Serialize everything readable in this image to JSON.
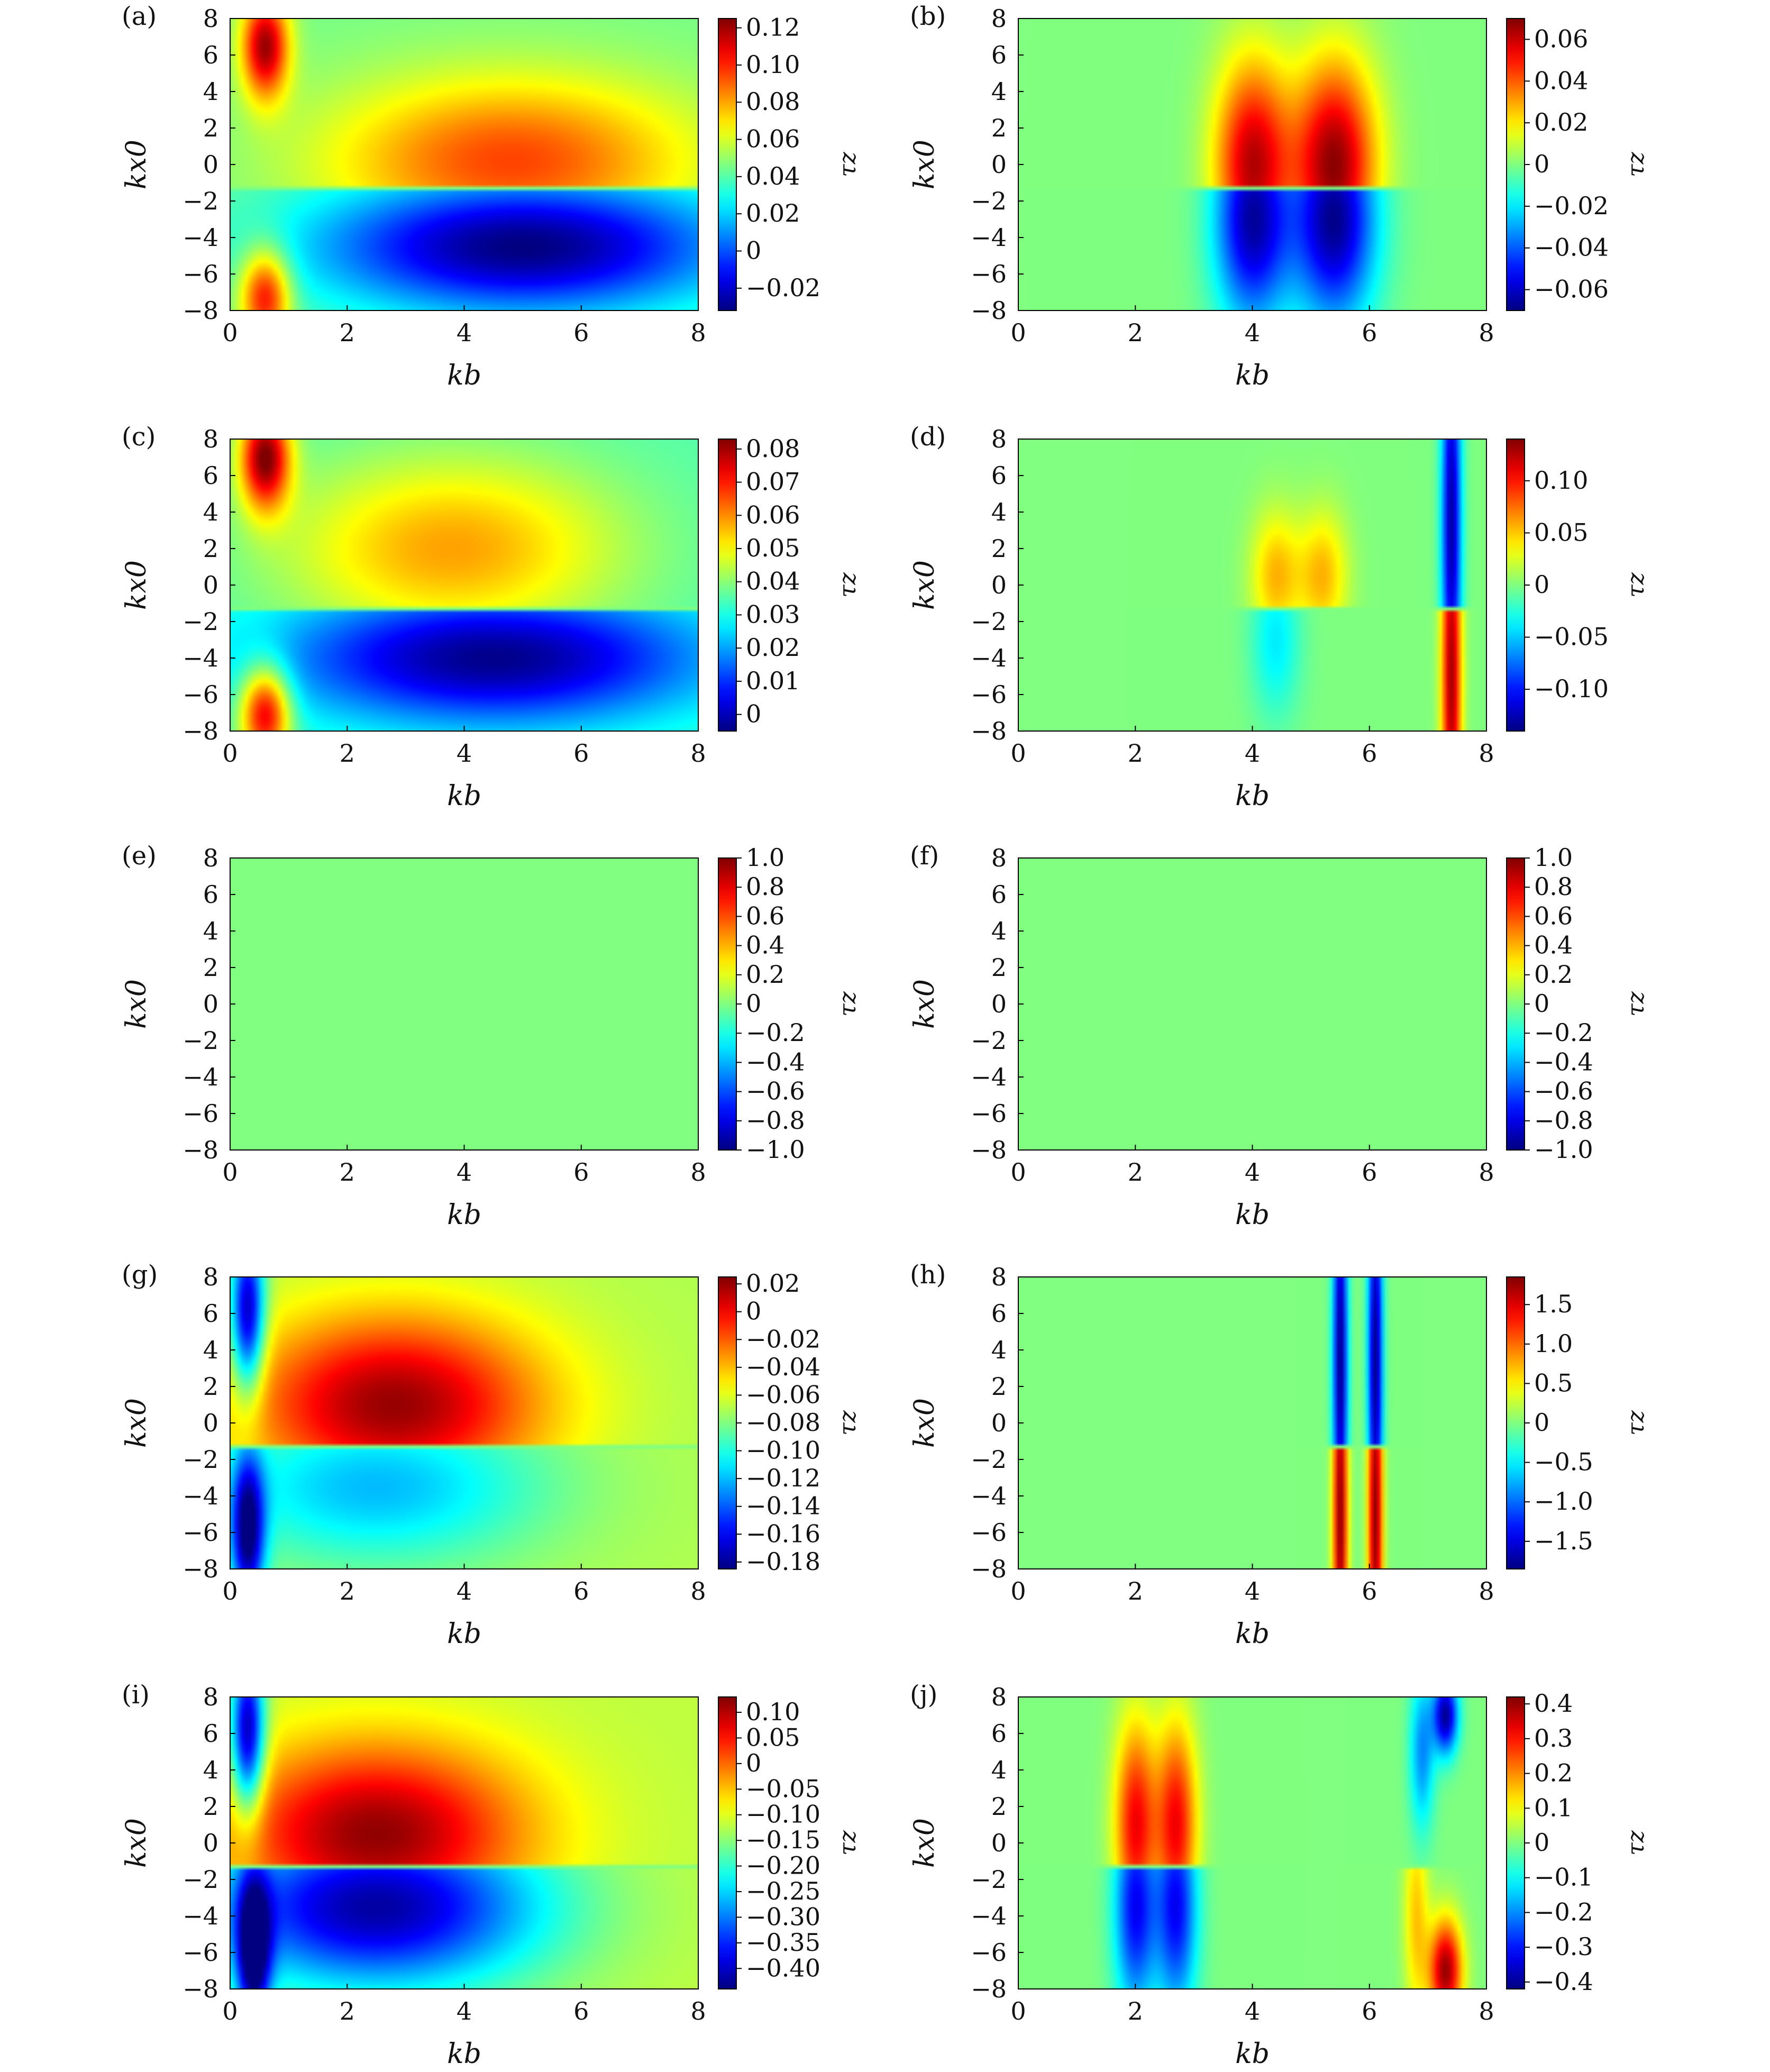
{
  "figure": {
    "panels": [
      "(a)",
      "(b)",
      "(c)",
      "(d)",
      "(e)",
      "(f)",
      "(g)",
      "(h)",
      "(i)",
      "(j)"
    ]
  },
  "chart_data": [
    {
      "type": "heatmap",
      "panel": "(a)",
      "xlabel": "kb",
      "ylabel": "kx0",
      "xlim": [
        0,
        8
      ],
      "ylim": [
        -8,
        8
      ],
      "xticks": [
        "0",
        "2",
        "4",
        "6",
        "8"
      ],
      "yticks": [
        "−8",
        "−6",
        "−4",
        "−2",
        "0",
        "2",
        "4",
        "6",
        "8"
      ],
      "colorbar": {
        "label": "τz",
        "range": [
          -0.032,
          0.125
        ],
        "ticks": [
          -0.02,
          0,
          0.02,
          0.04,
          0.06,
          0.08,
          0.1,
          0.12
        ],
        "tick_labels": [
          "−0.02",
          "0",
          "0.02",
          "0.04",
          "0.06",
          "0.08",
          "0.10",
          "0.12"
        ]
      },
      "sharp_interface_kx0": -1.3,
      "features": [
        {
          "kb": 0.6,
          "kx0": 6.5,
          "value": 0.12,
          "sx": 0.28,
          "sy": 2.0
        },
        {
          "kb": 0.6,
          "kx0": -7.2,
          "value": 0.11,
          "sx": 0.3,
          "sy": 1.8
        },
        {
          "kb": 4.8,
          "kx0": 0.2,
          "value": 0.095,
          "sx": 2.2,
          "sy": 3.2
        },
        {
          "kb": 5.0,
          "kx0": -4.5,
          "value": -0.032,
          "sx": 2.5,
          "sy": 2.6
        }
      ],
      "base_value": 0.045
    },
    {
      "type": "heatmap",
      "panel": "(b)",
      "xlabel": "kb",
      "ylabel": "kx0",
      "xlim": [
        0,
        8
      ],
      "ylim": [
        -8,
        8
      ],
      "xticks": [
        "0",
        "2",
        "4",
        "6",
        "8"
      ],
      "yticks": [
        "−8",
        "−6",
        "−4",
        "−2",
        "0",
        "2",
        "4",
        "6",
        "8"
      ],
      "colorbar": {
        "label": "τz",
        "range": [
          -0.07,
          0.07
        ],
        "ticks": [
          -0.06,
          -0.04,
          -0.02,
          0,
          0.02,
          0.04,
          0.06
        ],
        "tick_labels": [
          "−0.06",
          "−0.04",
          "−0.02",
          "0",
          "0.02",
          "0.04",
          "0.06"
        ]
      },
      "sharp_interface_kx0": -1.3,
      "features": [
        {
          "kb": 4.0,
          "kx0": 0.0,
          "value": 0.062,
          "sx": 0.45,
          "sy": 4.0
        },
        {
          "kb": 5.4,
          "kx0": 0.0,
          "value": 0.068,
          "sx": 0.5,
          "sy": 4.0
        },
        {
          "kb": 4.0,
          "kx0": -3.0,
          "value": -0.065,
          "sx": 0.45,
          "sy": 4.0
        },
        {
          "kb": 5.4,
          "kx0": -3.0,
          "value": -0.068,
          "sx": 0.5,
          "sy": 4.0
        }
      ],
      "base_value": 0.0
    },
    {
      "type": "heatmap",
      "panel": "(c)",
      "xlabel": "kb",
      "ylabel": "kx0",
      "xlim": [
        0,
        8
      ],
      "ylim": [
        -8,
        8
      ],
      "xticks": [
        "0",
        "2",
        "4",
        "6",
        "8"
      ],
      "yticks": [
        "−8",
        "−6",
        "−4",
        "−2",
        "0",
        "2",
        "4",
        "6",
        "8"
      ],
      "colorbar": {
        "label": "τz",
        "range": [
          -0.005,
          0.083
        ],
        "ticks": [
          0,
          0.01,
          0.02,
          0.03,
          0.04,
          0.05,
          0.06,
          0.07,
          0.08
        ],
        "tick_labels": [
          "0",
          "0.01",
          "0.02",
          "0.03",
          "0.04",
          "0.05",
          "0.06",
          "0.07",
          "0.08"
        ]
      },
      "sharp_interface_kx0": -1.3,
      "features": [
        {
          "kb": 0.6,
          "kx0": 7.0,
          "value": 0.082,
          "sx": 0.3,
          "sy": 2.0
        },
        {
          "kb": 0.6,
          "kx0": -7.0,
          "value": 0.078,
          "sx": 0.3,
          "sy": 1.8
        },
        {
          "kb": 3.8,
          "kx0": 2.0,
          "value": 0.058,
          "sx": 2.0,
          "sy": 3.5
        },
        {
          "kb": 4.5,
          "kx0": -4.0,
          "value": -0.004,
          "sx": 2.6,
          "sy": 2.6
        }
      ],
      "base_value": 0.035
    },
    {
      "type": "heatmap",
      "panel": "(d)",
      "xlabel": "kb",
      "ylabel": "kx0",
      "xlim": [
        0,
        8
      ],
      "ylim": [
        -8,
        8
      ],
      "xticks": [
        "0",
        "2",
        "4",
        "6",
        "8"
      ],
      "yticks": [
        "−8",
        "−6",
        "−4",
        "−2",
        "0",
        "2",
        "4",
        "6",
        "8"
      ],
      "colorbar": {
        "label": "τz",
        "range": [
          -0.14,
          0.14
        ],
        "ticks": [
          -0.1,
          -0.05,
          0,
          0.05,
          0.1
        ],
        "tick_labels": [
          "−0.10",
          "−0.05",
          "0",
          "0.05",
          "0.10"
        ]
      },
      "sharp_interface_kx0": -1.3,
      "features": [
        {
          "kb": 7.4,
          "kx0": 3.5,
          "value": -0.13,
          "sx": 0.12,
          "sy": 8.0
        },
        {
          "kb": 7.4,
          "kx0": -5.0,
          "value": 0.13,
          "sx": 0.12,
          "sy": 8.0
        },
        {
          "kb": 4.4,
          "kx0": 0.5,
          "value": 0.055,
          "sx": 0.3,
          "sy": 2.5
        },
        {
          "kb": 5.2,
          "kx0": 0.5,
          "value": 0.055,
          "sx": 0.3,
          "sy": 2.5
        },
        {
          "kb": 4.4,
          "kx0": -3.0,
          "value": -0.04,
          "sx": 0.3,
          "sy": 3.0
        }
      ],
      "base_value": 0.0
    },
    {
      "type": "heatmap",
      "panel": "(e)",
      "xlabel": "kb",
      "ylabel": "kx0",
      "xlim": [
        0,
        8
      ],
      "ylim": [
        -8,
        8
      ],
      "xticks": [
        "0",
        "2",
        "4",
        "6",
        "8"
      ],
      "yticks": [
        "−8",
        "−6",
        "−4",
        "−2",
        "0",
        "2",
        "4",
        "6",
        "8"
      ],
      "colorbar": {
        "label": "τz",
        "range": [
          -1.0,
          1.0
        ],
        "ticks": [
          -1.0,
          -0.8,
          -0.6,
          -0.4,
          -0.2,
          0,
          0.2,
          0.4,
          0.6,
          0.8,
          1.0
        ],
        "tick_labels": [
          "−1.0",
          "−0.8",
          "−0.6",
          "−0.4",
          "−0.2",
          "0",
          "0.2",
          "0.4",
          "0.6",
          "0.8",
          "1.0"
        ]
      },
      "sharp_interface_kx0": null,
      "features": [],
      "base_value": 0.0
    },
    {
      "type": "heatmap",
      "panel": "(f)",
      "xlabel": "kb",
      "ylabel": "kx0",
      "xlim": [
        0,
        8
      ],
      "ylim": [
        -8,
        8
      ],
      "xticks": [
        "0",
        "2",
        "4",
        "6",
        "8"
      ],
      "yticks": [
        "−8",
        "−6",
        "−4",
        "−2",
        "0",
        "2",
        "4",
        "6",
        "8"
      ],
      "colorbar": {
        "label": "τz",
        "range": [
          -1.0,
          1.0
        ],
        "ticks": [
          -1.0,
          -0.8,
          -0.6,
          -0.4,
          -0.2,
          0,
          0.2,
          0.4,
          0.6,
          0.8,
          1.0
        ],
        "tick_labels": [
          "−1.0",
          "−0.8",
          "−0.6",
          "−0.4",
          "−0.2",
          "0",
          "0.2",
          "0.4",
          "0.6",
          "0.8",
          "1.0"
        ]
      },
      "sharp_interface_kx0": null,
      "features": [],
      "base_value": 0.0
    },
    {
      "type": "heatmap",
      "panel": "(g)",
      "xlabel": "kb",
      "ylabel": "kx0",
      "xlim": [
        0,
        8
      ],
      "ylim": [
        -8,
        8
      ],
      "xticks": [
        "0",
        "2",
        "4",
        "6",
        "8"
      ],
      "yticks": [
        "−8",
        "−6",
        "−4",
        "−2",
        "0",
        "2",
        "4",
        "6",
        "8"
      ],
      "colorbar": {
        "label": "τz",
        "range": [
          -0.185,
          0.025
        ],
        "ticks": [
          -0.18,
          -0.16,
          -0.14,
          -0.12,
          -0.1,
          -0.08,
          -0.06,
          -0.04,
          -0.02,
          0,
          0.02
        ],
        "tick_labels": [
          "−0.18",
          "−0.16",
          "−0.14",
          "−0.12",
          "−0.10",
          "−0.08",
          "−0.06",
          "−0.04",
          "−0.02",
          "0",
          "0.02"
        ]
      },
      "sharp_interface_kx0": -1.3,
      "features": [
        {
          "kb": 0.3,
          "kx0": 6.0,
          "value": -0.18,
          "sx": 0.2,
          "sy": 3.0
        },
        {
          "kb": 0.3,
          "kx0": -6.0,
          "value": -0.18,
          "sx": 0.2,
          "sy": 3.0
        },
        {
          "kb": 2.8,
          "kx0": 1.0,
          "value": 0.02,
          "sx": 1.8,
          "sy": 3.5
        },
        {
          "kb": 2.5,
          "kx0": -3.5,
          "value": -0.12,
          "sx": 2.0,
          "sy": 3.0
        }
      ],
      "base_value": -0.07
    },
    {
      "type": "heatmap",
      "panel": "(h)",
      "xlabel": "kb",
      "ylabel": "kx0",
      "xlim": [
        0,
        8
      ],
      "ylim": [
        -8,
        8
      ],
      "xticks": [
        "0",
        "2",
        "4",
        "6",
        "8"
      ],
      "yticks": [
        "−8",
        "−6",
        "−4",
        "−2",
        "0",
        "2",
        "4",
        "6",
        "8"
      ],
      "colorbar": {
        "label": "τz",
        "range": [
          -1.85,
          1.85
        ],
        "ticks": [
          -1.5,
          -1.0,
          -0.5,
          0,
          0.5,
          1.0,
          1.5
        ],
        "tick_labels": [
          "−1.5",
          "−1.0",
          "−0.5",
          "0",
          "0.5",
          "1.0",
          "1.5"
        ]
      },
      "sharp_interface_kx0": -1.3,
      "features": [
        {
          "kb": 5.5,
          "kx0": 3.5,
          "value": -1.8,
          "sx": 0.09,
          "sy": 8.0
        },
        {
          "kb": 6.1,
          "kx0": 3.5,
          "value": -1.8,
          "sx": 0.09,
          "sy": 8.0
        },
        {
          "kb": 5.5,
          "kx0": -5.0,
          "value": 1.8,
          "sx": 0.09,
          "sy": 8.0
        },
        {
          "kb": 6.1,
          "kx0": -5.0,
          "value": 1.8,
          "sx": 0.09,
          "sy": 8.0
        }
      ],
      "base_value": 0.0
    },
    {
      "type": "heatmap",
      "panel": "(i)",
      "xlabel": "kb",
      "ylabel": "kx0",
      "xlim": [
        0,
        8
      ],
      "ylim": [
        -8,
        8
      ],
      "xticks": [
        "0",
        "2",
        "4",
        "6",
        "8"
      ],
      "yticks": [
        "−8",
        "−6",
        "−4",
        "−2",
        "0",
        "2",
        "4",
        "6",
        "8"
      ],
      "colorbar": {
        "label": "τz",
        "range": [
          -0.44,
          0.13
        ],
        "ticks": [
          -0.4,
          -0.35,
          -0.3,
          -0.25,
          -0.2,
          -0.15,
          -0.1,
          -0.05,
          0,
          0.05,
          0.1
        ],
        "tick_labels": [
          "−0.40",
          "−0.35",
          "−0.30",
          "−0.25",
          "−0.20",
          "−0.15",
          "−0.10",
          "−0.05",
          "0",
          "0.05",
          "0.10"
        ]
      },
      "sharp_interface_kx0": -1.3,
      "features": [
        {
          "kb": 0.3,
          "kx0": 6.0,
          "value": -0.43,
          "sx": 0.2,
          "sy": 3.0
        },
        {
          "kb": 0.4,
          "kx0": -6.0,
          "value": -0.43,
          "sx": 0.2,
          "sy": 3.0
        },
        {
          "kb": 2.5,
          "kx0": 0.5,
          "value": 0.12,
          "sx": 1.8,
          "sy": 3.5
        },
        {
          "kb": 2.5,
          "kx0": -3.5,
          "value": -0.42,
          "sx": 2.0,
          "sy": 3.2
        }
      ],
      "base_value": -0.12
    },
    {
      "type": "heatmap",
      "panel": "(j)",
      "xlabel": "kb",
      "ylabel": "kx0",
      "xlim": [
        0,
        8
      ],
      "ylim": [
        -8,
        8
      ],
      "xticks": [
        "0",
        "2",
        "4",
        "6",
        "8"
      ],
      "yticks": [
        "−8",
        "−6",
        "−4",
        "−2",
        "0",
        "2",
        "4",
        "6",
        "8"
      ],
      "colorbar": {
        "label": "τz",
        "range": [
          -0.42,
          0.42
        ],
        "ticks": [
          -0.4,
          -0.3,
          -0.2,
          -0.1,
          0,
          0.1,
          0.2,
          0.3,
          0.4
        ],
        "tick_labels": [
          "−0.4",
          "−0.3",
          "−0.2",
          "−0.1",
          "0",
          "0.1",
          "0.2",
          "0.3",
          "0.4"
        ]
      },
      "sharp_interface_kx0": -1.3,
      "features": [
        {
          "kb": 2.0,
          "kx0": 1.0,
          "value": 0.32,
          "sx": 0.25,
          "sy": 4.0
        },
        {
          "kb": 2.7,
          "kx0": 1.0,
          "value": 0.32,
          "sx": 0.25,
          "sy": 4.0
        },
        {
          "kb": 2.0,
          "kx0": -3.5,
          "value": -0.32,
          "sx": 0.25,
          "sy": 4.0
        },
        {
          "kb": 2.7,
          "kx0": -3.5,
          "value": -0.32,
          "sx": 0.25,
          "sy": 4.0
        },
        {
          "kb": 7.3,
          "kx0": -7.0,
          "value": 0.4,
          "sx": 0.2,
          "sy": 2.0
        },
        {
          "kb": 6.8,
          "kx0": -4.0,
          "value": 0.15,
          "sx": 0.15,
          "sy": 4.0
        },
        {
          "kb": 7.3,
          "kx0": 7.0,
          "value": -0.4,
          "sx": 0.15,
          "sy": 1.5
        },
        {
          "kb": 6.9,
          "kx0": 5.0,
          "value": -0.2,
          "sx": 0.15,
          "sy": 3.0
        }
      ],
      "base_value": 0.0
    }
  ]
}
